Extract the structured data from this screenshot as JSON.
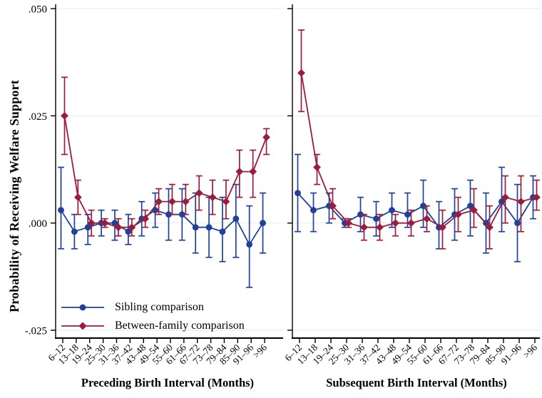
{
  "figure": {
    "ylabel": "Probability of Receiving Welfare Support",
    "yticks": [
      {
        "value": 0.05,
        "label": ".050"
      },
      {
        "value": 0.025,
        "label": ".025"
      },
      {
        "value": 0.0,
        "label": ".000"
      },
      {
        "value": -0.025,
        "label": "-.025"
      }
    ],
    "ylim": [
      -0.027,
      0.051
    ],
    "grid": "on",
    "legend_position": "bottom-left inside left panel"
  },
  "style": {
    "blue": "#1f419a",
    "maroon": "#9b1c3c",
    "grid_color": "#e3f1ee",
    "axis_color": "#000000",
    "background": "#ffffff"
  },
  "chart_data": [
    {
      "type": "line",
      "panel": "left",
      "xlabel": "Preceding Birth Interval (Months)",
      "categories": [
        "6–12",
        "13–18",
        "19–24",
        "25–30",
        "31–36",
        "37–42",
        "43–48",
        "49–54",
        "55–60",
        "61–66",
        "67–72",
        "73–78",
        "79–84",
        "85–90",
        "91–96",
        ">96"
      ],
      "series": [
        {
          "name": "Sibling comparison",
          "marker": "circle",
          "color": "#1f419a",
          "values": [
            0.003,
            -0.002,
            -0.001,
            0.0,
            0.0,
            -0.002,
            0.001,
            0.003,
            0.002,
            0.002,
            -0.001,
            -0.001,
            -0.002,
            0.001,
            -0.005,
            0.0
          ],
          "ci_low": [
            -0.006,
            -0.006,
            -0.005,
            -0.003,
            -0.004,
            -0.005,
            -0.003,
            -0.001,
            -0.004,
            -0.004,
            -0.007,
            -0.008,
            -0.009,
            -0.008,
            -0.015,
            -0.007
          ],
          "ci_high": [
            0.013,
            0.002,
            0.002,
            0.003,
            0.003,
            0.002,
            0.005,
            0.007,
            0.008,
            0.008,
            0.007,
            0.006,
            0.006,
            0.009,
            0.004,
            0.007
          ]
        },
        {
          "name": "Between-family comparison",
          "marker": "diamond",
          "color": "#9b1c3c",
          "values": [
            0.025,
            0.006,
            0.0,
            0.0,
            -0.001,
            -0.001,
            0.001,
            0.005,
            0.005,
            0.005,
            0.007,
            0.006,
            0.005,
            0.012,
            0.012,
            0.02
          ],
          "ci_low": [
            0.016,
            0.002,
            -0.003,
            -0.001,
            -0.003,
            -0.003,
            -0.001,
            0.002,
            0.002,
            0.002,
            0.003,
            0.002,
            0.001,
            0.006,
            0.006,
            0.016
          ],
          "ci_high": [
            0.034,
            0.01,
            0.003,
            0.001,
            0.001,
            0.001,
            0.003,
            0.008,
            0.009,
            0.009,
            0.011,
            0.01,
            0.01,
            0.017,
            0.017,
            0.022
          ]
        }
      ]
    },
    {
      "type": "line",
      "panel": "right",
      "xlabel": "Subsequent Birth Interval (Months)",
      "categories": [
        "6–12",
        "13–18",
        "19–24",
        "25–30",
        "31–36",
        "37–42",
        "43–48",
        "49–54",
        "55–60",
        "61–66",
        "67–72",
        "73–78",
        "79–84",
        "85–90",
        "91–96",
        ">96"
      ],
      "series": [
        {
          "name": "Sibling comparison",
          "marker": "circle",
          "color": "#1f419a",
          "values": [
            0.007,
            0.003,
            0.004,
            0.0,
            0.002,
            0.001,
            0.003,
            0.002,
            0.004,
            -0.001,
            0.002,
            0.004,
            0.0,
            0.005,
            0.0,
            0.006
          ],
          "ci_low": [
            -0.002,
            -0.002,
            0.0,
            -0.001,
            -0.002,
            -0.003,
            -0.001,
            -0.001,
            -0.001,
            -0.006,
            -0.004,
            -0.003,
            -0.007,
            -0.002,
            -0.009,
            0.001
          ],
          "ci_high": [
            0.016,
            0.007,
            0.007,
            0.001,
            0.006,
            0.005,
            0.007,
            0.007,
            0.01,
            0.005,
            0.008,
            0.01,
            0.007,
            0.013,
            0.009,
            0.011
          ]
        },
        {
          "name": "Between-family comparison",
          "marker": "diamond",
          "color": "#9b1c3c",
          "values": [
            0.035,
            0.013,
            0.004,
            0.0,
            -0.001,
            -0.001,
            0.0,
            0.0,
            0.001,
            -0.001,
            0.002,
            0.003,
            -0.001,
            0.006,
            0.005,
            0.006
          ],
          "ci_low": [
            0.026,
            0.009,
            0.001,
            -0.001,
            -0.004,
            -0.004,
            -0.003,
            -0.003,
            -0.002,
            -0.006,
            -0.002,
            -0.001,
            -0.006,
            0.0,
            -0.002,
            0.003
          ],
          "ci_high": [
            0.045,
            0.016,
            0.008,
            0.001,
            0.002,
            0.002,
            0.002,
            0.003,
            0.004,
            0.003,
            0.006,
            0.008,
            0.004,
            0.011,
            0.011,
            0.01
          ]
        }
      ]
    }
  ]
}
